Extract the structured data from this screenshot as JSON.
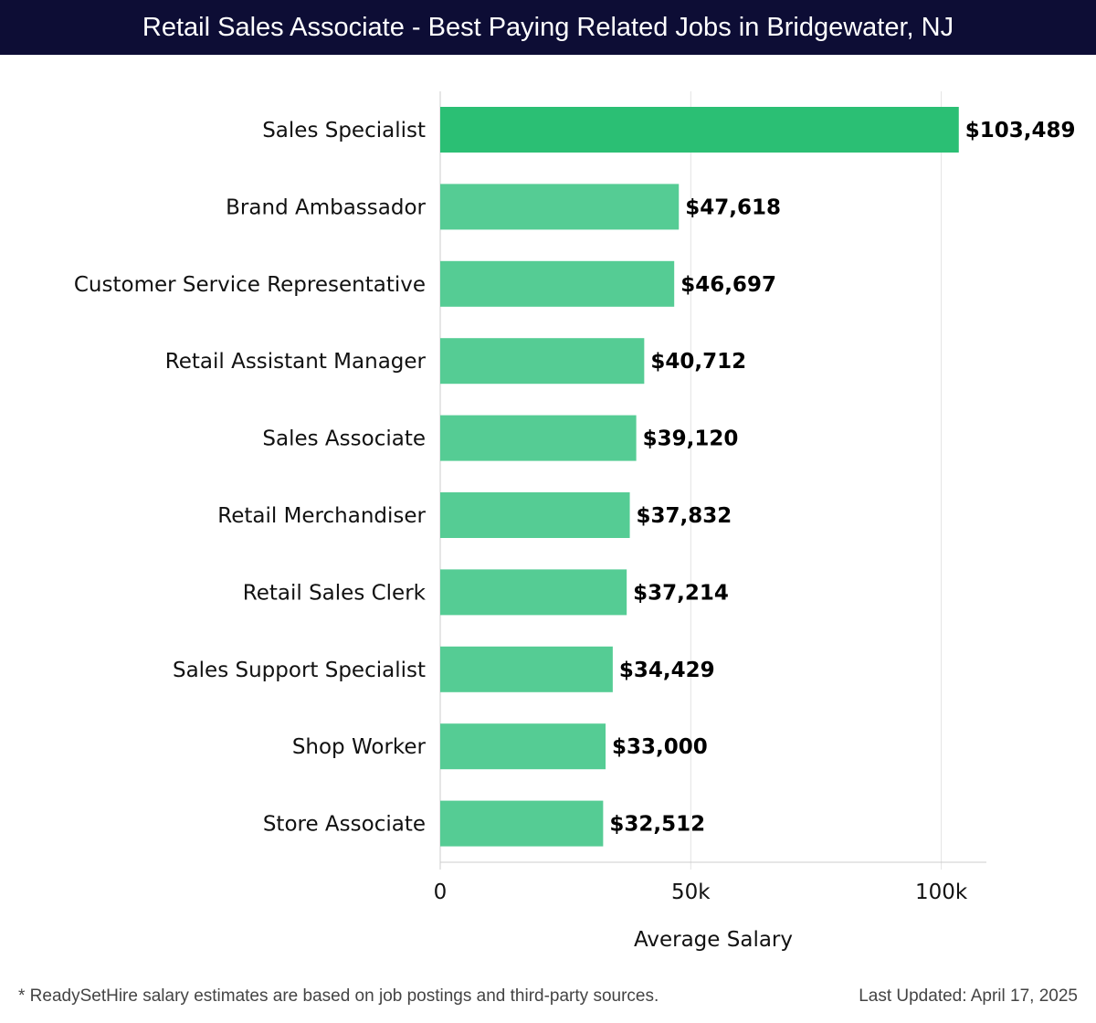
{
  "header": {
    "title": "Retail Sales Associate - Best Paying Related Jobs in Bridgewater, NJ"
  },
  "colors": {
    "header_bg": "#0d0d35",
    "top_bar": "#2bbf74",
    "bar": "#55cc94"
  },
  "chart_data": {
    "type": "bar",
    "orientation": "horizontal",
    "categories": [
      "Sales Specialist",
      "Brand Ambassador",
      "Customer Service Representative",
      "Retail Assistant Manager",
      "Sales Associate",
      "Retail Merchandiser",
      "Retail Sales Clerk",
      "Sales Support Specialist",
      "Shop Worker",
      "Store Associate"
    ],
    "values": [
      103489,
      47618,
      46697,
      40712,
      39120,
      37832,
      37214,
      34429,
      33000,
      32512
    ],
    "value_labels": [
      "$103,489",
      "$47,618",
      "$46,697",
      "$40,712",
      "$39,120",
      "$37,832",
      "$37,214",
      "$34,429",
      "$33,000",
      "$32,512"
    ],
    "xlabel": "Average Salary",
    "xlim": [
      0,
      109000
    ],
    "xticks": [
      0,
      50000,
      100000
    ],
    "xtick_labels": [
      "0",
      "50k",
      "100k"
    ],
    "grid": true
  },
  "footer": {
    "note": "* ReadySetHire salary estimates are based on job postings and third-party sources.",
    "updated": "Last Updated: April 17, 2025"
  }
}
